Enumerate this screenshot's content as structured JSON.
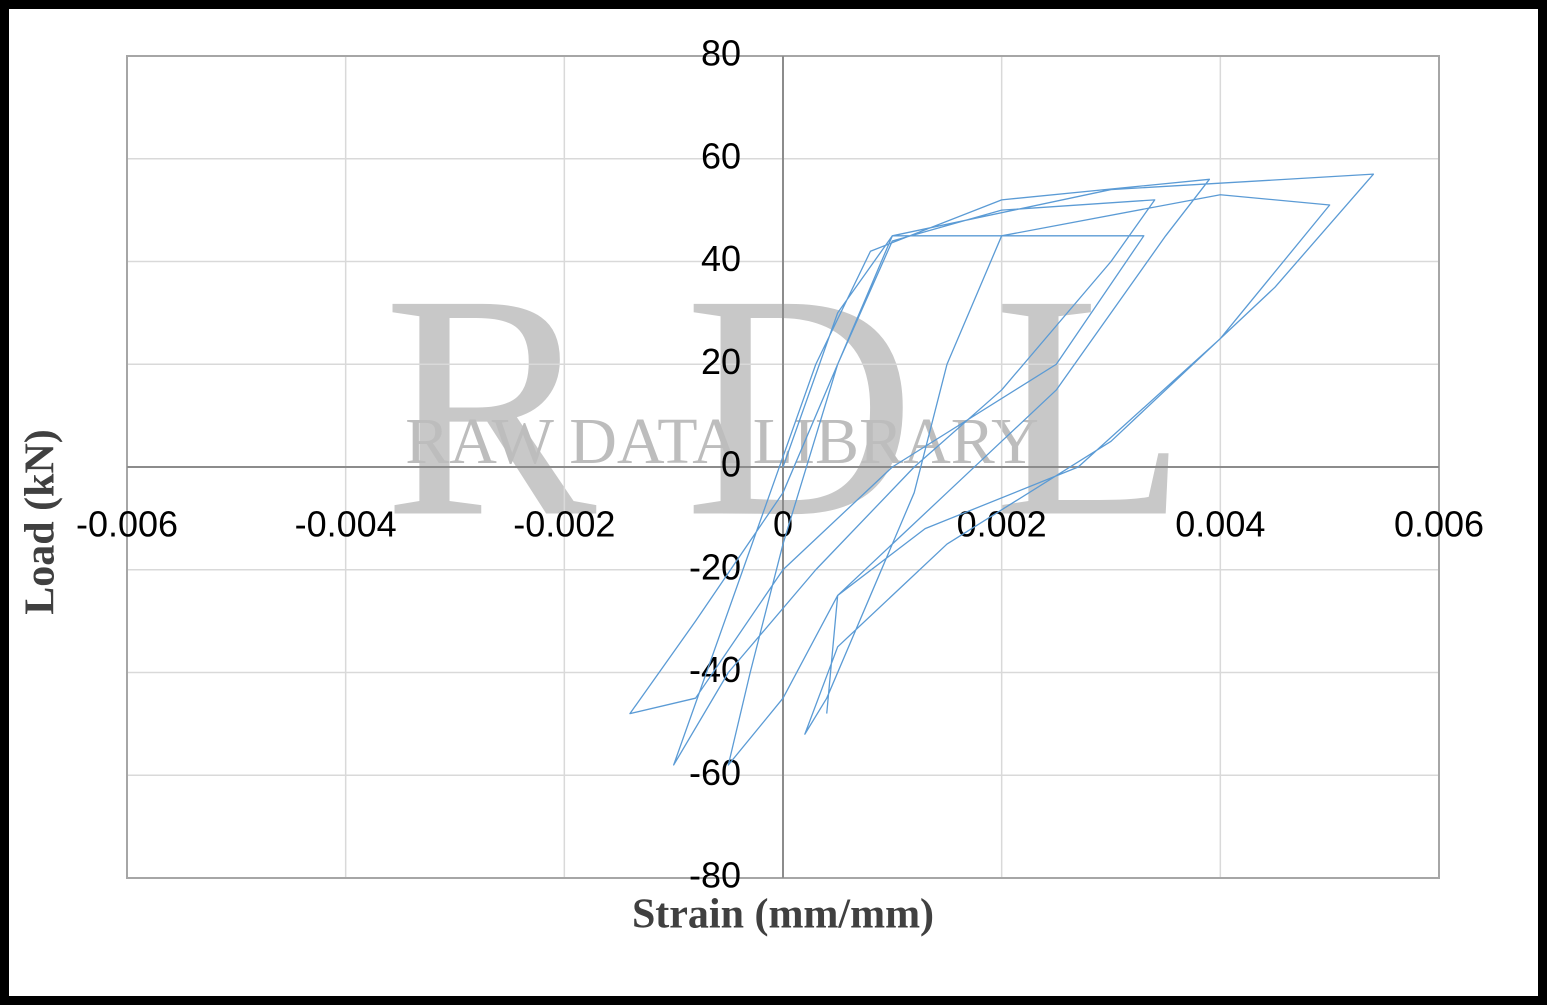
{
  "chart_data": {
    "type": "line",
    "x_label": "Strain (mm/mm)",
    "y_label": "Load (kN)",
    "watermark": [
      "R",
      "D",
      "L"
    ],
    "watermark_caption": "RAW DATA LIBRARY",
    "xlim": [
      -0.006,
      0.006
    ],
    "ylim": [
      -80,
      80
    ],
    "xticks": [
      -0.006,
      -0.004,
      -0.002,
      0,
      0.002,
      0.004,
      0.006
    ],
    "yticks": [
      -80,
      -60,
      -40,
      -20,
      0,
      20,
      40,
      60,
      80
    ],
    "grid": true,
    "x": [
      0,
      0.0005,
      0.001,
      0.0033,
      0.0025,
      0.001,
      0,
      -0.0008,
      -0.0014,
      -0.0008,
      0,
      0.0005,
      0.001,
      0.002,
      0.0034,
      0.003,
      0.002,
      0.0012,
      0.0003,
      -0.0005,
      -0.001,
      -0.0007,
      -0.0002,
      0.0003,
      0.0008,
      0.002,
      0.0039,
      0.0035,
      0.0025,
      0.0015,
      0.0005,
      0,
      -0.0005,
      -0.0003,
      0,
      0.0005,
      0.001,
      0.003,
      0.0054,
      0.0045,
      0.003,
      0.0015,
      0.0005,
      0.0002,
      0.0004,
      0.0008,
      0.0012,
      0.0015,
      0.002,
      0.004,
      0.005,
      0.004,
      0.0027,
      0.0013,
      0.0005,
      0.0004
    ],
    "series": [
      {
        "color": "#5b9bd5",
        "values": [
          0,
          30,
          45,
          45,
          20,
          0,
          -20,
          -45,
          -48,
          -30,
          -5,
          20,
          44,
          50,
          52,
          40,
          15,
          0,
          -20,
          -40,
          -58,
          -40,
          -10,
          20,
          42,
          52,
          56,
          45,
          15,
          -5,
          -25,
          -45,
          -58,
          -40,
          -15,
          20,
          45,
          54,
          57,
          35,
          5,
          -15,
          -35,
          -52,
          -45,
          -25,
          -5,
          20,
          45,
          53,
          51,
          25,
          0,
          -12,
          -25,
          -48
        ]
      }
    ]
  }
}
